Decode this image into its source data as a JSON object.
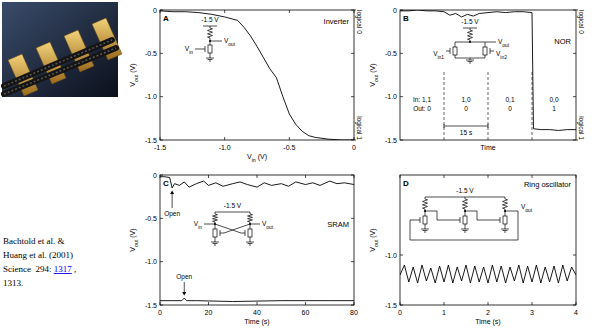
{
  "chart_data": [
    {
      "type": "line",
      "label": "A",
      "title": "Inverter",
      "x_label": "Vin (V)",
      "y_label": "Vout (V)",
      "color": "#000000",
      "xlim": [
        -1.5,
        0
      ],
      "xticks": [
        -1.5,
        {
          "value": -1.0,
          "label": "-1.0"
        },
        -0.5,
        0
      ],
      "ylim": [
        -1.5,
        0
      ],
      "yticks": [
        -1.5,
        {
          "value": -1.0,
          "label": "-1.0"
        },
        -0.5,
        0
      ],
      "right_labels": [
        {
          "value": 0,
          "label": "logical 0"
        },
        {
          "value": -1.5,
          "label": "logical 1"
        }
      ],
      "circuit_labels": [
        "-1.5 V",
        "Vin",
        "Vout"
      ],
      "x": [
        -1.5,
        -1.4,
        -1.3,
        -1.2,
        -1.1,
        -1.0,
        -0.9,
        -0.85,
        -0.8,
        -0.75,
        -0.7,
        -0.65,
        -0.6,
        -0.55,
        -0.5,
        -0.45,
        -0.4,
        -0.35,
        -0.3,
        -0.2,
        -0.1,
        0
      ],
      "values": [
        -0.01,
        -0.02,
        -0.02,
        -0.03,
        -0.05,
        -0.08,
        -0.12,
        -0.2,
        -0.3,
        -0.42,
        -0.55,
        -0.68,
        -0.78,
        -1.0,
        -1.2,
        -1.32,
        -1.4,
        -1.45,
        -1.47,
        -1.49,
        -1.5,
        -1.5
      ]
    },
    {
      "type": "line",
      "label": "B",
      "title": "NOR",
      "x_label": "Time",
      "y_label": "Vout (V)",
      "color": "#000000",
      "tick_labels": "y",
      "xlim": [
        0,
        60
      ],
      "ylim": [
        -1.5,
        0
      ],
      "yticks": [
        -1.5,
        {
          "value": -1.0,
          "label": "-1.0"
        },
        -0.5,
        0
      ],
      "right_labels": [
        {
          "value": 0,
          "label": "logical 0"
        },
        {
          "value": -1.5,
          "label": "logical 1"
        }
      ],
      "circuit_labels": [
        "-1.5 V",
        "Vout",
        "Vin1",
        "Vin2"
      ],
      "segments": [
        {
          "start": 0,
          "end": 15,
          "input": "In: 1,1",
          "output": "Out: 0"
        },
        {
          "start": 15,
          "end": 30,
          "input": "1,0",
          "output": "0"
        },
        {
          "start": 30,
          "end": 45,
          "input": "0,1",
          "output": "0"
        },
        {
          "start": 45,
          "end": 60,
          "input": "0,0",
          "output": "1"
        }
      ],
      "scale_bar": {
        "value": 15,
        "label": "15 s"
      },
      "x": [
        0,
        3,
        6,
        9,
        12,
        15,
        17,
        19,
        21,
        23,
        25,
        27,
        30,
        33,
        36,
        39,
        42,
        45,
        45.5,
        48,
        51,
        54,
        57,
        60
      ],
      "values": [
        -0.01,
        -0.01,
        0,
        -0.01,
        -0.01,
        -0.02,
        -0.06,
        -0.04,
        -0.08,
        -0.05,
        -0.07,
        -0.04,
        -0.03,
        -0.02,
        -0.03,
        -0.02,
        -0.02,
        -0.03,
        -1.37,
        -1.38,
        -1.38,
        -1.39,
        -1.38,
        -1.38
      ]
    },
    {
      "type": "line",
      "label": "C",
      "title": "SRAM",
      "x_label": "Time (s)",
      "y_label": "Vout (V)",
      "color": "#000000",
      "xlim": [
        0,
        80
      ],
      "xticks": [
        0,
        20,
        40,
        60,
        80
      ],
      "ylim": [
        -1.5,
        0
      ],
      "yticks": [
        -1.5,
        {
          "value": -1.0,
          "label": "-1.0"
        },
        -0.5,
        0
      ],
      "circuit_labels": [
        "-1.5 V",
        "Vin",
        "Vout"
      ],
      "series": [
        {
          "x": [
            0,
            2,
            4,
            5,
            6,
            8,
            10,
            12,
            15,
            18,
            20,
            23,
            26,
            30,
            33,
            36,
            40,
            43,
            46,
            50,
            53,
            56,
            60,
            63,
            66,
            70,
            73,
            76,
            80
          ],
          "values": [
            -0.02,
            -0.02,
            -0.03,
            -0.15,
            -0.1,
            -0.12,
            -0.08,
            -0.14,
            -0.1,
            -0.07,
            -0.12,
            -0.09,
            -0.13,
            -0.1,
            -0.08,
            -0.11,
            -0.14,
            -0.09,
            -0.12,
            -0.1,
            -0.13,
            -0.08,
            -0.11,
            -0.09,
            -0.12,
            -0.07,
            -0.1,
            -0.09,
            -0.11
          ],
          "annotation": {
            "text": "Open",
            "x": 5
          }
        },
        {
          "x": [
            0,
            5,
            9,
            10,
            11,
            15,
            30,
            50,
            70,
            80
          ],
          "values": [
            -1.45,
            -1.45,
            -1.45,
            -1.42,
            -1.45,
            -1.45,
            -1.46,
            -1.45,
            -1.45,
            -1.45
          ],
          "annotation": {
            "text": "Open",
            "x": 10
          }
        }
      ]
    },
    {
      "type": "line",
      "label": "D",
      "title": "Ring oscillator",
      "x_label": "Time (s)",
      "y_label": "Vout (V)",
      "color": "#000000",
      "xlim": [
        0,
        4
      ],
      "xticks": [
        0,
        1,
        2,
        3,
        4
      ],
      "ylim": [
        -1.5,
        -0.2
      ],
      "yticks": [
        -1.5,
        {
          "value": -1.0,
          "label": "-1.0"
        }
      ],
      "circuit_labels": [
        "-1.5 V",
        "Vout"
      ],
      "x": [
        0,
        0.1,
        0.2,
        0.3,
        0.4,
        0.5,
        0.6,
        0.7,
        0.8,
        0.9,
        1,
        1.1,
        1.2,
        1.3,
        1.4,
        1.5,
        1.6,
        1.7,
        1.8,
        1.9,
        2,
        2.1,
        2.2,
        2.3,
        2.4,
        2.5,
        2.6,
        2.7,
        2.8,
        2.9,
        3,
        3.1,
        3.2,
        3.3,
        3.4,
        3.5,
        3.6,
        3.7,
        3.8,
        3.9,
        4
      ],
      "values": [
        -1.2,
        -1.1,
        -1.27,
        -1.12,
        -1.28,
        -1.1,
        -1.26,
        -1.13,
        -1.28,
        -1.11,
        -1.27,
        -1.1,
        -1.28,
        -1.12,
        -1.26,
        -1.1,
        -1.28,
        -1.11,
        -1.27,
        -1.12,
        -1.28,
        -1.1,
        -1.27,
        -1.11,
        -1.28,
        -1.12,
        -1.26,
        -1.1,
        -1.28,
        -1.11,
        -1.27,
        -1.1,
        -1.28,
        -1.12,
        -1.27,
        -1.11,
        -1.28,
        -1.1,
        -1.26,
        -1.12,
        -1.2
      ]
    }
  ],
  "citation": {
    "lines": [
      "Bachtold et al. &",
      "Huang et al. (2001)"
    ],
    "journal": "Science  294:",
    "link": "1317",
    "after_link": ",",
    "last": "1313."
  }
}
